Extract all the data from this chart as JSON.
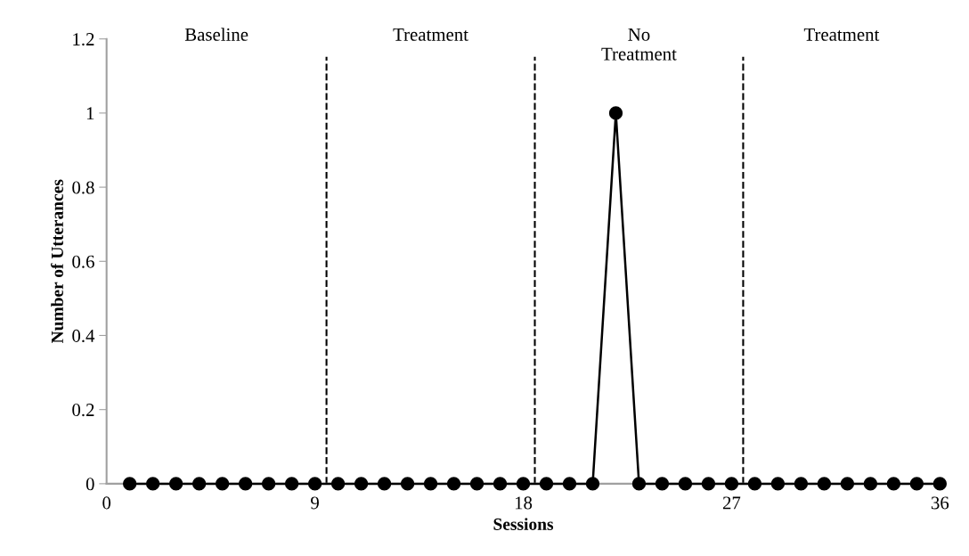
{
  "chart_data": {
    "type": "line",
    "xlabel": "Sessions",
    "ylabel": "Number of Utterances",
    "x": [
      1,
      2,
      3,
      4,
      5,
      6,
      7,
      8,
      9,
      10,
      11,
      12,
      13,
      14,
      15,
      16,
      17,
      18,
      19,
      20,
      21,
      22,
      23,
      24,
      25,
      26,
      27,
      28,
      29,
      30,
      31,
      32,
      33,
      34,
      35,
      36
    ],
    "series": [
      {
        "color": "#000000",
        "values": [
          0,
          0,
          0,
          0,
          0,
          0,
          0,
          0,
          0,
          0,
          0,
          0,
          0,
          0,
          0,
          0,
          0,
          0,
          0,
          0,
          0,
          1,
          0,
          0,
          0,
          0,
          0,
          0,
          0,
          0,
          0,
          0,
          0,
          0,
          0,
          0
        ]
      }
    ],
    "xlim": [
      0,
      36
    ],
    "xticks": [
      0,
      9,
      18,
      27,
      36
    ],
    "ylim": [
      0,
      1.2
    ],
    "yticks": [
      0,
      0.2,
      0.4,
      0.6,
      0.8,
      1,
      1.2
    ],
    "marker": "circle",
    "line_style": "solid",
    "grid": false,
    "legend": false,
    "ref_lines": [
      {
        "axis": "x",
        "value": 9.5,
        "color": "#000000",
        "line_style": "dashed"
      },
      {
        "axis": "x",
        "value": 18.5,
        "color": "#000000",
        "line_style": "dashed"
      },
      {
        "axis": "x",
        "value": 27.5,
        "color": "#000000",
        "line_style": "dashed"
      }
    ],
    "annotations": [
      "Baseline",
      "Treatment",
      "No\nTreatment",
      "Treatment"
    ]
  }
}
